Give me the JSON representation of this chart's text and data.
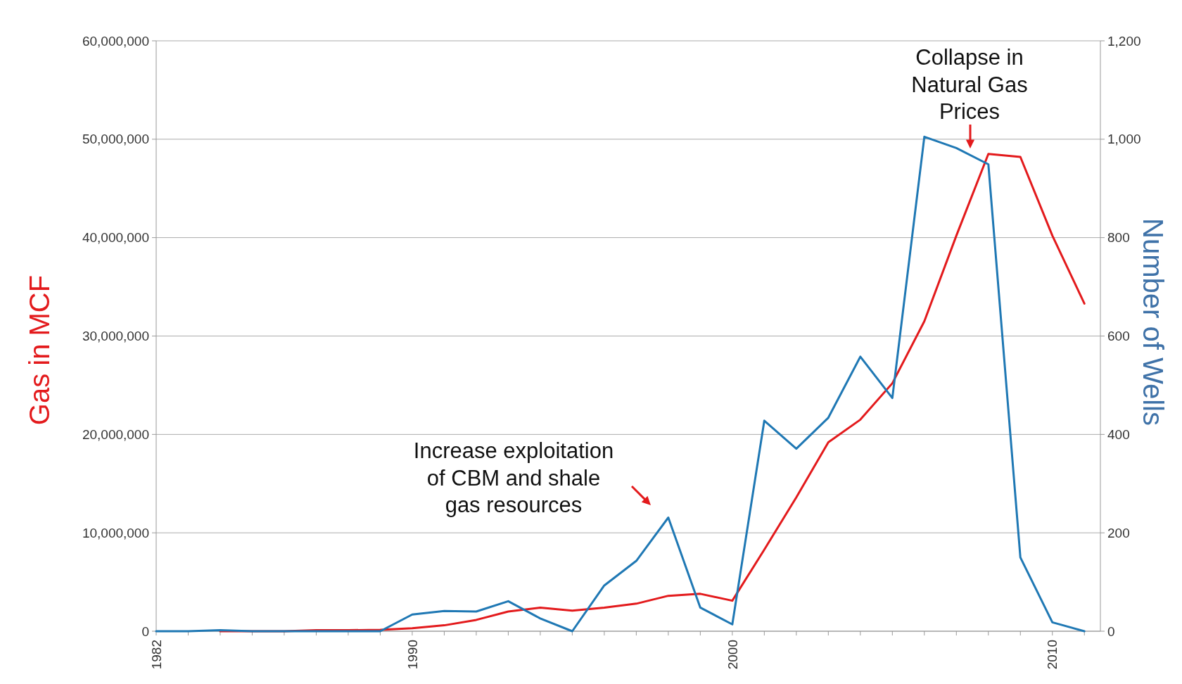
{
  "chart_data": {
    "type": "line",
    "ylabel": "Gas in MCF",
    "y2label": "Number of Wells",
    "x": [
      1982,
      1983,
      1984,
      1985,
      1986,
      1987,
      1988,
      1989,
      1990,
      1991,
      1992,
      1993,
      1994,
      1995,
      1996,
      1997,
      1998,
      1999,
      2000,
      2001,
      2002,
      2003,
      2004,
      2005,
      2006,
      2007,
      2008,
      2009,
      2010,
      2011
    ],
    "series": [
      {
        "color": "#e31a1c",
        "values": [
          null,
          null,
          0,
          0,
          0,
          100000,
          100000,
          150000,
          300000,
          600000,
          1150000,
          2000000,
          2400000,
          2100000,
          2400000,
          2800000,
          3600000,
          3800000,
          3100000,
          8300000,
          13600000,
          19200000,
          21500000,
          25200000,
          31500000,
          40200000,
          48500000,
          48200000,
          40200000,
          33300000
        ]
      },
      {
        "color": "#1f78b4",
        "axis": "y2",
        "values": [
          0,
          0,
          2,
          0,
          0,
          0,
          0,
          0,
          34,
          41,
          40,
          61,
          26,
          0,
          93,
          143,
          231,
          48,
          14,
          428,
          371,
          434,
          558,
          474,
          1005,
          982,
          949,
          150,
          18,
          0
        ]
      }
    ],
    "xlim": [
      1982,
      2011.5
    ],
    "xticks": [
      1982,
      1990,
      2000,
      2010
    ],
    "ylim": [
      0,
      60000000
    ],
    "yticks": [
      {
        "value": 0,
        "label": "0"
      },
      {
        "value": 10000000,
        "label": "10,000,000"
      },
      {
        "value": 20000000,
        "label": "20,000,000"
      },
      {
        "value": 30000000,
        "label": "30,000,000"
      },
      {
        "value": 40000000,
        "label": "40,000,000"
      },
      {
        "value": 50000000,
        "label": "50,000,000"
      },
      {
        "value": 60000000,
        "label": "60,000,000"
      }
    ],
    "y2lim": [
      0,
      1200
    ],
    "y2ticks": [
      0,
      200,
      400,
      600,
      800,
      {
        "value": 1000,
        "label": "1,000"
      },
      {
        "value": 1200,
        "label": "1,200"
      }
    ],
    "grid": "y",
    "line_style": "solid",
    "annotations": [
      "Collapse in\nNatural Gas\nPrices",
      "Increase exploitation\nof CBM and shale\ngas resources"
    ]
  }
}
